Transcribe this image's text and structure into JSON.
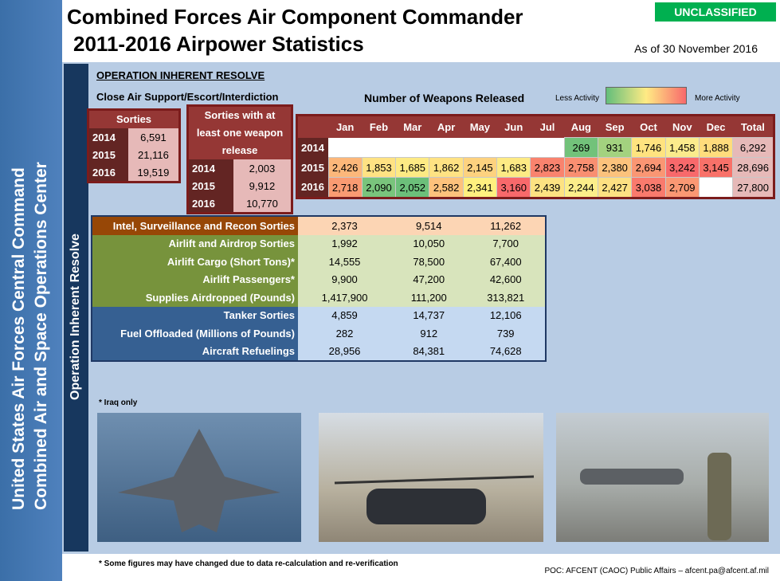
{
  "header": {
    "title_line1": "Combined Forces Air Component Commander",
    "title_line2": "2011-2016 Airpower Statistics",
    "classification": "UNCLASSIFIED",
    "as_of": "As of 30 November 2016"
  },
  "sidebar": {
    "line1": "United States Air Forces Central Command",
    "line2": "Combined Air and Space Operations Center"
  },
  "section": {
    "operation_label": "Operation Inherent Resolve",
    "heading": "OPERATION INHERENT RESOLVE",
    "cas_label": "Close Air Support/Escort/Interdiction"
  },
  "sorties": {
    "title": "Sorties",
    "rows": [
      [
        "2014",
        "6,591"
      ],
      [
        "2015",
        "21,116"
      ],
      [
        "2016",
        "19,519"
      ]
    ]
  },
  "weapon_sorties": {
    "title": "Sorties with at least one weapon release",
    "rows": [
      [
        "2014",
        "2,003"
      ],
      [
        "2015",
        "9,912"
      ],
      [
        "2016",
        "10,770"
      ]
    ]
  },
  "weapons": {
    "title": "Number of Weapons Released",
    "legend_low": "Less Activity",
    "legend_high": "More Activity",
    "columns": [
      "Jan",
      "Feb",
      "Mar",
      "Apr",
      "May",
      "Jun",
      "Jul",
      "Aug",
      "Sep",
      "Oct",
      "Nov",
      "Dec",
      "Total"
    ],
    "rows": [
      {
        "year": "2014",
        "values": [
          null,
          null,
          null,
          null,
          null,
          null,
          null,
          "269",
          "931",
          "1,746",
          "1,458",
          "1,888",
          "6,292"
        ],
        "colors": [
          null,
          null,
          null,
          null,
          null,
          null,
          null,
          "#72c27a",
          "#a3d27f",
          "#ffe37f",
          "#fbeb8c",
          "#ffdc7c",
          "#e6b9b8"
        ]
      },
      {
        "year": "2015",
        "values": [
          "2,426",
          "1,853",
          "1,685",
          "1,862",
          "2,145",
          "1,683",
          "2,823",
          "2,758",
          "2,380",
          "2,694",
          "3,242",
          "3,145",
          "28,696"
        ],
        "colors": [
          "#fcb77a",
          "#ffe283",
          "#fdea84",
          "#ffe283",
          "#fdd27f",
          "#fdea84",
          "#f9836e",
          "#f98f71",
          "#fcc27c",
          "#fa9673",
          "#f8696b",
          "#f87169",
          "#e6b9b8"
        ]
      },
      {
        "year": "2016",
        "values": [
          "2,718",
          "2,090",
          "2,052",
          "2,582",
          "2,341",
          "3,160",
          "2,439",
          "2,244",
          "2,427",
          "3,038",
          "2,709",
          null,
          "27,800"
        ],
        "colors": [
          "#fa9b72",
          "#79c47c",
          "#6cbf7a",
          "#fdc27c",
          "#fff07f",
          "#f8696b",
          "#fde282",
          "#fcee8a",
          "#fde082",
          "#f97a6d",
          "#fa9873",
          null,
          "#e6b9b8"
        ]
      }
    ]
  },
  "stats": {
    "rows": [
      {
        "label": "Intel, Surveillance and Recon Sorties",
        "values": [
          "2,373",
          "9,514",
          "11,262"
        ],
        "label_color": "#974706",
        "value_color": "#fcd5b4"
      },
      {
        "label": "Airlift and Airdrop Sorties",
        "values": [
          "1,992",
          "10,050",
          "7,700"
        ],
        "label_color": "#77933c",
        "value_color": "#d8e4bc"
      },
      {
        "label": "Airlift Cargo (Short Tons)*",
        "values": [
          "14,555",
          "78,500",
          "67,400"
        ],
        "label_color": "#77933c",
        "value_color": "#d8e4bc"
      },
      {
        "label": "Airlift Passengers*",
        "values": [
          "9,900",
          "47,200",
          "42,600"
        ],
        "label_color": "#77933c",
        "value_color": "#d8e4bc"
      },
      {
        "label": "Supplies Airdropped (Pounds)",
        "values": [
          "1,417,900",
          "111,200",
          "313,821"
        ],
        "label_color": "#77933c",
        "value_color": "#d8e4bc"
      },
      {
        "label": "Tanker Sorties",
        "values": [
          "4,859",
          "14,737",
          "12,106"
        ],
        "label_color": "#366092",
        "value_color": "#c5d9f1"
      },
      {
        "label": "Fuel Offloaded (Millions of Pounds)",
        "values": [
          "282",
          "912",
          "739"
        ],
        "label_color": "#366092",
        "value_color": "#c5d9f1"
      },
      {
        "label": "Aircraft Refuelings",
        "values": [
          "28,956",
          "84,381",
          "74,628"
        ],
        "label_color": "#366092",
        "value_color": "#c5d9f1"
      }
    ]
  },
  "notes": {
    "iraq": "* Iraq only",
    "figures": "* Some figures may have changed due to data re-calculation and re-verification",
    "poc": "POC:  AFCENT (CAOC) Public Affairs – afcent.pa@afcent.af.mil"
  }
}
